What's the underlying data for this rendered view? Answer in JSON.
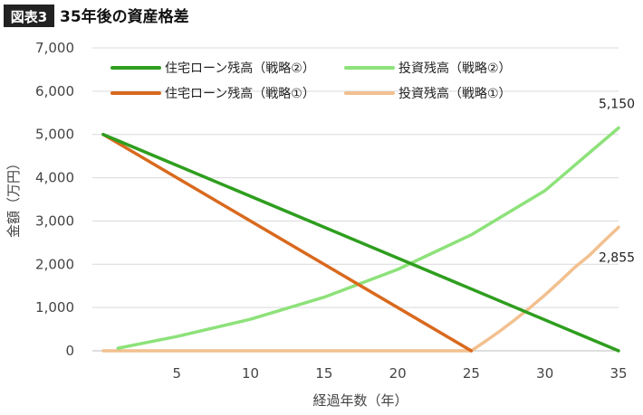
{
  "figure": {
    "badge": "図表3",
    "title": "35年後の資産格差"
  },
  "chart_data": {
    "type": "line",
    "xlabel": "経過年数（年）",
    "ylabel": "金額（万円）",
    "xlim": [
      0,
      35
    ],
    "ylim": [
      0,
      7000
    ],
    "xticks": [
      5,
      10,
      15,
      20,
      25,
      30,
      35
    ],
    "yticks": [
      0,
      1000,
      2000,
      3000,
      4000,
      5000,
      6000,
      7000
    ],
    "ytick_labels": [
      "0",
      "1,000",
      "2,000",
      "3,000",
      "4,000",
      "5,000",
      "6,000",
      "7,000"
    ],
    "grid": "horizontal",
    "legend_position": "top",
    "series": [
      {
        "name": "住宅ローン残高（戦略②）",
        "color": "#2e9e1e",
        "x": [
          0,
          35
        ],
        "y": [
          5000,
          0
        ]
      },
      {
        "name": "住宅ローン残高（戦略①）",
        "color": "#d9691e",
        "x": [
          0,
          25
        ],
        "y": [
          5000,
          0
        ]
      },
      {
        "name": "投資残高（戦略②）",
        "color": "#8de27a",
        "x": [
          1,
          5,
          10,
          15,
          20,
          25,
          30,
          35
        ],
        "y": [
          60,
          330,
          730,
          1240,
          1880,
          2680,
          3700,
          5150
        ]
      },
      {
        "name": "投資残高（戦略①）",
        "color": "#f2c08f",
        "x": [
          0,
          25,
          26,
          27,
          28,
          29,
          30,
          31,
          32,
          33,
          34,
          35
        ],
        "y": [
          0,
          0,
          230,
          470,
          730,
          1000,
          1290,
          1600,
          1920,
          2200,
          2530,
          2855
        ]
      }
    ],
    "annotations": [
      {
        "text": "5,150",
        "x": 35,
        "y": 5150
      },
      {
        "text": "2,855",
        "x": 35,
        "y": 2855
      }
    ]
  }
}
